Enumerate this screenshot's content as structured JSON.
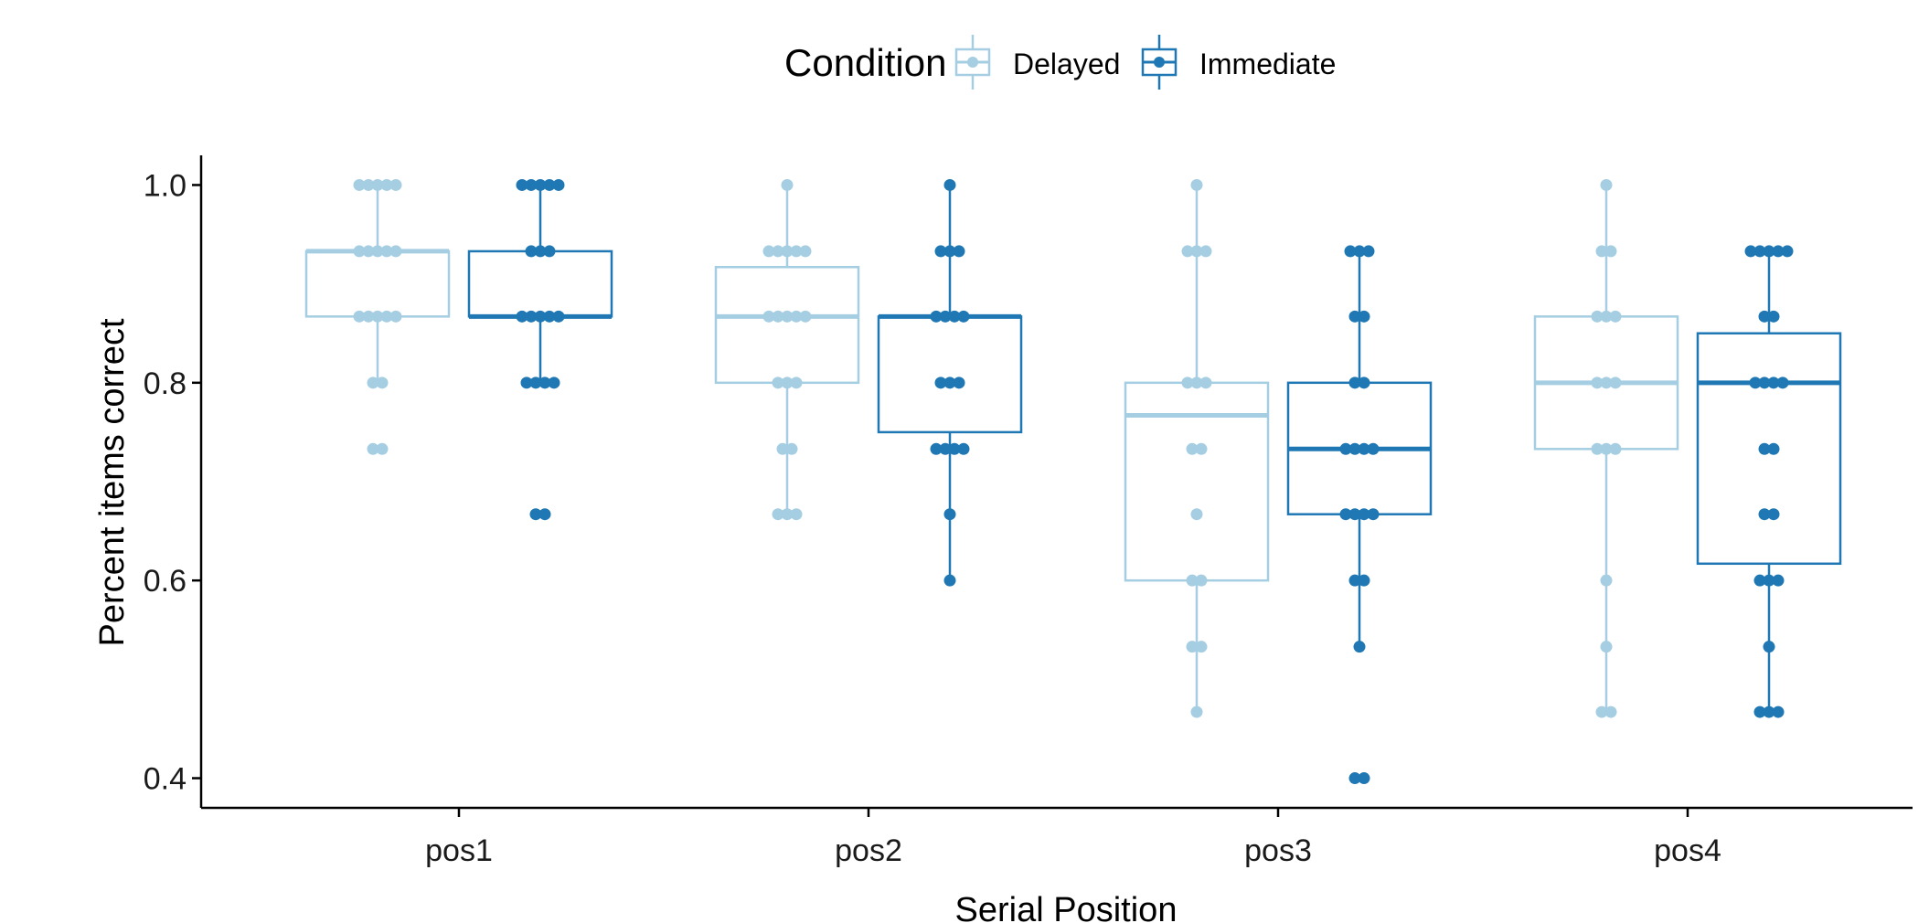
{
  "chart_data": {
    "type": "boxplot",
    "xlabel": "Serial Position",
    "ylabel": "Percent items correct",
    "ylim": [
      0.37,
      1.03
    ],
    "yticks": [
      0.4,
      0.6,
      0.8,
      1.0
    ],
    "ytick_labels": [
      "0.4",
      "0.6",
      "0.8",
      "1.0"
    ],
    "categories": [
      "pos1",
      "pos2",
      "pos3",
      "pos4"
    ],
    "grid": false,
    "legend": {
      "title": "Condition",
      "position": "top",
      "entries": [
        "Delayed",
        "Immediate"
      ]
    },
    "series": [
      {
        "name": "Delayed",
        "color": "#a6cee3",
        "boxes": [
          {
            "category": "pos1",
            "whisker_low": 0.8,
            "q1": 0.867,
            "median": 0.933,
            "q3": 0.933,
            "whisker_high": 1.0
          },
          {
            "category": "pos2",
            "whisker_low": 0.667,
            "q1": 0.8,
            "median": 0.867,
            "q3": 0.917,
            "whisker_high": 1.0
          },
          {
            "category": "pos3",
            "whisker_low": 0.467,
            "q1": 0.6,
            "median": 0.767,
            "q3": 0.8,
            "whisker_high": 1.0
          },
          {
            "category": "pos4",
            "whisker_low": 0.467,
            "q1": 0.733,
            "median": 0.8,
            "q3": 0.867,
            "whisker_high": 1.0
          }
        ],
        "points": [
          {
            "category": "pos1",
            "values": [
              1.0,
              1.0,
              1.0,
              1.0,
              1.0,
              0.933,
              0.933,
              0.933,
              0.933,
              0.933,
              0.867,
              0.867,
              0.867,
              0.867,
              0.867,
              0.8,
              0.8,
              0.733,
              0.733
            ]
          },
          {
            "category": "pos2",
            "values": [
              1.0,
              0.933,
              0.933,
              0.933,
              0.933,
              0.933,
              0.867,
              0.867,
              0.867,
              0.867,
              0.867,
              0.8,
              0.8,
              0.8,
              0.733,
              0.733,
              0.667,
              0.667,
              0.667
            ]
          },
          {
            "category": "pos3",
            "values": [
              1.0,
              0.933,
              0.933,
              0.933,
              0.8,
              0.8,
              0.8,
              0.733,
              0.733,
              0.667,
              0.6,
              0.6,
              0.533,
              0.533,
              0.467
            ]
          },
          {
            "category": "pos4",
            "values": [
              1.0,
              0.933,
              0.933,
              0.867,
              0.867,
              0.867,
              0.8,
              0.8,
              0.8,
              0.733,
              0.733,
              0.733,
              0.6,
              0.533,
              0.467,
              0.467
            ]
          }
        ]
      },
      {
        "name": "Immediate",
        "color": "#1f78b4",
        "boxes": [
          {
            "category": "pos1",
            "whisker_low": 0.8,
            "q1": 0.867,
            "median": 0.867,
            "q3": 0.933,
            "whisker_high": 1.0
          },
          {
            "category": "pos2",
            "whisker_low": 0.6,
            "q1": 0.75,
            "median": 0.867,
            "q3": 0.867,
            "whisker_high": 1.0
          },
          {
            "category": "pos3",
            "whisker_low": 0.533,
            "q1": 0.667,
            "median": 0.733,
            "q3": 0.8,
            "whisker_high": 0.933
          },
          {
            "category": "pos4",
            "whisker_low": 0.467,
            "q1": 0.617,
            "median": 0.8,
            "q3": 0.85,
            "whisker_high": 0.933
          }
        ],
        "points": [
          {
            "category": "pos1",
            "values": [
              1.0,
              1.0,
              1.0,
              1.0,
              1.0,
              0.933,
              0.933,
              0.933,
              0.867,
              0.867,
              0.867,
              0.867,
              0.867,
              0.8,
              0.8,
              0.8,
              0.8,
              0.667,
              0.667
            ]
          },
          {
            "category": "pos2",
            "values": [
              1.0,
              0.933,
              0.933,
              0.933,
              0.867,
              0.867,
              0.867,
              0.867,
              0.8,
              0.8,
              0.8,
              0.733,
              0.733,
              0.733,
              0.733,
              0.667,
              0.6
            ]
          },
          {
            "category": "pos3",
            "values": [
              0.933,
              0.933,
              0.933,
              0.867,
              0.867,
              0.8,
              0.8,
              0.733,
              0.733,
              0.733,
              0.733,
              0.667,
              0.667,
              0.667,
              0.667,
              0.6,
              0.6,
              0.533,
              0.4,
              0.4
            ]
          },
          {
            "category": "pos4",
            "values": [
              0.933,
              0.933,
              0.933,
              0.933,
              0.933,
              0.867,
              0.867,
              0.8,
              0.8,
              0.8,
              0.8,
              0.733,
              0.733,
              0.667,
              0.667,
              0.6,
              0.6,
              0.6,
              0.533,
              0.467,
              0.467,
              0.467
            ]
          }
        ]
      }
    ]
  }
}
